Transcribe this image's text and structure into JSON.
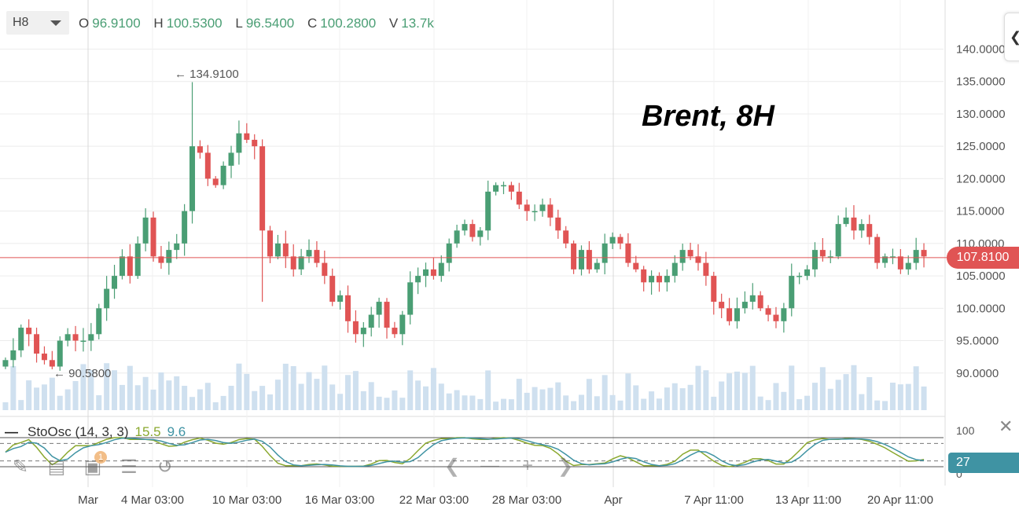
{
  "toolbar": {
    "timeframe": "H8"
  },
  "ohlc": {
    "o_label": "O",
    "o": "96.9100",
    "h_label": "H",
    "h": "100.5300",
    "l_label": "L",
    "l": "96.5400",
    "c_label": "C",
    "c": "100.2800",
    "v_label": "V",
    "v": "13.7k"
  },
  "annotation": "Brent, 8H",
  "high_label": "← 134.9100",
  "low_label": "← 90.5800",
  "current_price": "107.8100",
  "oscillator": {
    "name": "StoOsc (14, 3, 3)",
    "k_value": "15.5",
    "d_value": "9.6",
    "tag": "27",
    "levels": [
      "100",
      "0"
    ],
    "k_color": "#8aa82e",
    "d_color": "#3f93a3"
  },
  "colors": {
    "up": "#4a9e74",
    "down": "#e05454",
    "volume": "#cfe0ef",
    "price_line": "#e05454"
  },
  "icons": {
    "draw": "pencil-icon",
    "list": "list-icon",
    "add": "add-indicator-icon",
    "settings": "sliders-icon",
    "reset": "undo-icon"
  },
  "indicator_badge": "1",
  "chart_data": {
    "type": "candlestick",
    "y_ticks": [
      "140.0000",
      "135.0000",
      "130.0000",
      "125.0000",
      "120.0000",
      "115.0000",
      "110.0000",
      "105.0000",
      "100.0000",
      "95.0000",
      "90.0000"
    ],
    "ylim": [
      85,
      142
    ],
    "x_ticks": [
      "Mar",
      "4 Mar 03:00",
      "10 Mar 03:00",
      "16 Mar 03:00",
      "22 Mar 03:00",
      "28 Mar 03:00",
      "Apr",
      "7 Apr 11:00",
      "13 Apr 11:00",
      "20 Apr 11:00"
    ],
    "current_price": 107.81,
    "high": 134.91,
    "low": 90.58,
    "close_path": [
      92,
      93.5,
      97,
      96,
      93,
      92,
      91,
      95,
      96,
      95,
      95,
      96,
      100,
      103,
      105,
      108,
      105,
      110,
      114,
      108,
      107,
      109,
      110,
      115,
      125,
      124,
      120,
      119,
      122,
      124,
      127,
      126,
      125,
      112,
      108,
      110,
      108,
      106,
      108,
      109,
      107,
      105,
      101,
      102,
      98,
      96,
      97,
      99,
      101,
      97,
      96,
      99,
      104,
      105,
      106,
      105,
      107,
      110,
      112,
      113,
      111,
      112,
      118,
      119,
      119,
      118,
      116,
      115,
      115,
      116,
      114,
      112,
      110,
      106,
      109,
      106,
      107,
      110,
      111,
      110,
      107,
      106,
      104,
      105,
      104,
      105,
      107,
      109,
      108,
      107,
      105,
      101,
      100,
      98,
      100,
      101,
      102,
      100,
      99,
      98,
      100,
      105,
      105,
      106,
      109,
      108,
      108,
      113,
      114,
      112,
      113,
      111,
      107,
      108,
      108,
      106,
      107,
      109,
      108
    ]
  }
}
